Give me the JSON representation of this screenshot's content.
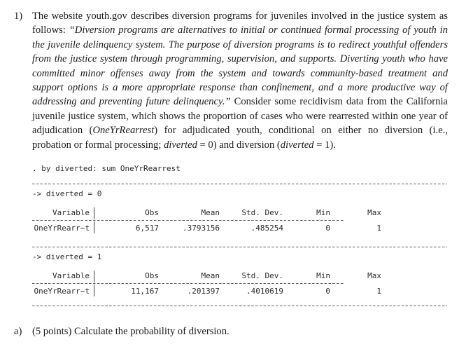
{
  "question1": {
    "number": "1)",
    "body": [
      {
        "text": "The website youth.gov describes diversion programs for juveniles involved in the justice system as follows: ",
        "style": "roman"
      },
      {
        "text": "“Diversion programs are alternatives to initial or continued formal processing of youth in the juvenile delinquency system. The purpose of diversion programs is to redirect youthful offenders from the justice system through programming, supervision, and supports. Diverting youth who have committed minor offenses away from the system and towards community-based treatment and support options is a more appropriate response than confinement, and a more productive way of addressing and preventing future delinquency.”",
        "style": "italic"
      },
      {
        "text": " Consider some recidivism data from the California juvenile justice system, which shows the proportion of cases who were rearrested within one year of adjudication (",
        "style": "roman"
      },
      {
        "text": "OneYrRearrest",
        "style": "italic"
      },
      {
        "text": ") for adjudicated youth, conditional on either no diversion (i.e., probation or formal processing; ",
        "style": "roman"
      },
      {
        "text": "diverted",
        "style": "italic"
      },
      {
        "text": " = 0) and diversion (",
        "style": "roman"
      },
      {
        "text": "diverted",
        "style": "italic"
      },
      {
        "text": " = 1).",
        "style": "roman"
      }
    ]
  },
  "stata": {
    "command": ". by diverted: sum OneYrRearrest",
    "sections": [
      {
        "group_label": "-> diverted = 0",
        "columns": {
          "variable": "Variable",
          "obs": "Obs",
          "mean": "Mean",
          "std_dev": "Std. Dev.",
          "min": "Min",
          "max": "Max"
        },
        "row": {
          "variable": "OneYrRearr~t",
          "obs": "6,517",
          "mean": ".3793156",
          "std_dev": ".485254",
          "min": "0",
          "max": "1"
        }
      },
      {
        "group_label": "-> diverted = 1",
        "columns": {
          "variable": "Variable",
          "obs": "Obs",
          "mean": "Mean",
          "std_dev": "Std. Dev.",
          "min": "Min",
          "max": "Max"
        },
        "row": {
          "variable": "OneYrRearr~t",
          "obs": "11,167",
          "mean": ".201397",
          "std_dev": ".4010619",
          "min": "0",
          "max": "1"
        }
      }
    ]
  },
  "part_a": {
    "label": "a)",
    "text": "(5 points) Calculate the probability of diversion."
  }
}
